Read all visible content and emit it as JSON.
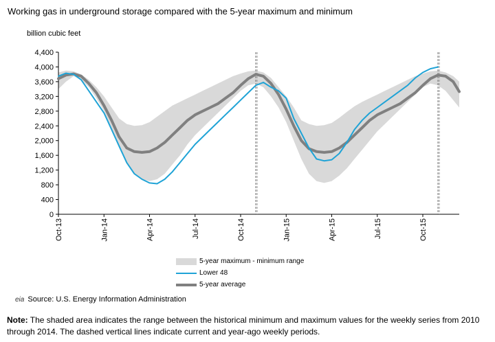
{
  "title": "Working gas in underground storage compared with the 5-year maximum and minimum",
  "y_unit": "billion cubic feet",
  "legend": [
    {
      "label": "5-year maximum - minimum range",
      "color": "#d9d9d9"
    },
    {
      "label": "Lower 48",
      "color": "#1fa3d6"
    },
    {
      "label": "5-year average",
      "color": "#808080"
    }
  ],
  "source": {
    "logo": "eia",
    "text": "Source:  U.S. Energy Information Administration"
  },
  "note": {
    "label": "Note:",
    "text": " The shaded area indicates the range between the historical minimum and maximum values for the weekly series from 2010 through 2014. The dashed vertical lines indicate current and year-ago weekly periods."
  },
  "chart_data": {
    "type": "line",
    "ylim": [
      0,
      4400
    ],
    "y_ticks": [
      "0",
      "400",
      "800",
      "1,200",
      "1,600",
      "2,000",
      "2,400",
      "2,800",
      "3,200",
      "3,600",
      "4,000",
      "4,400"
    ],
    "y_tick_values": [
      0,
      400,
      800,
      1200,
      1600,
      2000,
      2400,
      2800,
      3200,
      3600,
      4000,
      4400
    ],
    "x_tick_labels": [
      "Oct-13",
      "Jan-14",
      "Apr-14",
      "Jul-14",
      "Oct-14",
      "Jan-15",
      "Apr-15",
      "Jul-15",
      "Oct-15"
    ],
    "x_tick_months": [
      0,
      3,
      6,
      9,
      12,
      15,
      18,
      21,
      24
    ],
    "x_range_months": [
      0,
      26.4
    ],
    "reference_lines_months": [
      13.0,
      25.0
    ],
    "x_unit": "months from Oct-13",
    "range_band": {
      "x": [
        0,
        0.5,
        1,
        1.5,
        2,
        2.5,
        3,
        3.5,
        4,
        4.5,
        5,
        5.5,
        6,
        6.5,
        7,
        7.5,
        8,
        8.5,
        9,
        9.5,
        10,
        10.5,
        11,
        11.5,
        12,
        12.5,
        13,
        13.5,
        14,
        14.5,
        15,
        15.5,
        16,
        16.5,
        17,
        17.5,
        18,
        18.5,
        19,
        19.5,
        20,
        20.5,
        21,
        21.5,
        22,
        22.5,
        23,
        23.5,
        24,
        24.5,
        25,
        25.5,
        26,
        26.4
      ],
      "max": [
        3850,
        3900,
        3880,
        3800,
        3650,
        3450,
        3200,
        2900,
        2600,
        2450,
        2400,
        2420,
        2500,
        2650,
        2800,
        2950,
        3050,
        3150,
        3250,
        3350,
        3450,
        3550,
        3650,
        3750,
        3820,
        3880,
        3900,
        3850,
        3700,
        3450,
        3200,
        2900,
        2550,
        2450,
        2400,
        2420,
        2480,
        2620,
        2780,
        2930,
        3050,
        3150,
        3250,
        3350,
        3450,
        3550,
        3650,
        3750,
        3820,
        3880,
        3900,
        3850,
        3750,
        3600
      ],
      "min": [
        3400,
        3600,
        3750,
        3650,
        3450,
        3150,
        2800,
        2300,
        1800,
        1400,
        1100,
        950,
        900,
        950,
        1100,
        1350,
        1600,
        1900,
        2150,
        2350,
        2550,
        2750,
        2950,
        3150,
        3350,
        3500,
        3550,
        3450,
        3200,
        2900,
        2500,
        2000,
        1500,
        1100,
        900,
        850,
        900,
        1050,
        1250,
        1500,
        1750,
        2000,
        2250,
        2450,
        2650,
        2850,
        3050,
        3250,
        3450,
        3550,
        3500,
        3350,
        3100,
        2900
      ]
    },
    "series": [
      {
        "name": "Lower 48",
        "x": [
          0,
          0.5,
          1,
          1.5,
          2,
          2.5,
          3,
          3.5,
          4,
          4.5,
          5,
          5.5,
          6,
          6.5,
          7,
          7.5,
          8,
          8.5,
          9,
          9.5,
          10,
          10.5,
          11,
          11.5,
          12,
          12.5,
          13,
          13.5,
          14,
          14.5,
          15,
          15.5,
          16,
          16.5,
          17,
          17.5,
          18,
          18.5,
          19,
          19.5,
          20,
          20.5,
          21,
          21.5,
          22,
          22.5,
          23,
          23.5,
          24,
          24.5,
          25
        ],
        "values": [
          3750,
          3830,
          3800,
          3650,
          3350,
          3050,
          2750,
          2300,
          1850,
          1400,
          1100,
          950,
          850,
          830,
          950,
          1150,
          1400,
          1650,
          1900,
          2100,
          2300,
          2500,
          2700,
          2900,
          3100,
          3300,
          3500,
          3580,
          3450,
          3350,
          3150,
          2600,
          2200,
          1800,
          1500,
          1450,
          1480,
          1650,
          1950,
          2300,
          2550,
          2750,
          2900,
          3050,
          3200,
          3350,
          3500,
          3700,
          3850,
          3950,
          4000
        ]
      },
      {
        "name": "5-year average",
        "x": [
          0,
          0.5,
          1,
          1.5,
          2,
          2.5,
          3,
          3.5,
          4,
          4.5,
          5,
          5.5,
          6,
          6.5,
          7,
          7.5,
          8,
          8.5,
          9,
          9.5,
          10,
          10.5,
          11,
          11.5,
          12,
          12.5,
          13,
          13.5,
          14,
          14.5,
          15,
          15.5,
          16,
          16.5,
          17,
          17.5,
          18,
          18.5,
          19,
          19.5,
          20,
          20.5,
          21,
          21.5,
          22,
          22.5,
          23,
          23.5,
          24,
          24.5,
          25,
          25.5,
          26,
          26.4
        ],
        "values": [
          3680,
          3780,
          3810,
          3750,
          3550,
          3300,
          2950,
          2550,
          2100,
          1800,
          1700,
          1680,
          1700,
          1800,
          1950,
          2150,
          2350,
          2550,
          2700,
          2800,
          2900,
          3000,
          3150,
          3300,
          3500,
          3680,
          3800,
          3750,
          3550,
          3250,
          2850,
          2400,
          2000,
          1780,
          1700,
          1680,
          1700,
          1800,
          1950,
          2150,
          2350,
          2550,
          2700,
          2800,
          2900,
          3000,
          3150,
          3300,
          3500,
          3680,
          3780,
          3750,
          3600,
          3330
        ]
      }
    ]
  }
}
